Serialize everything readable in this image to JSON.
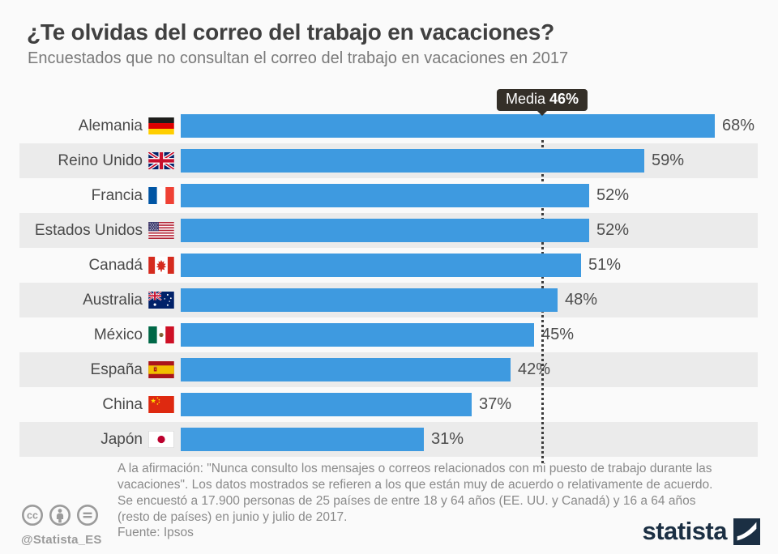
{
  "page": {
    "title": "¿Te olvidas del correo del trabajo en vacaciones?",
    "subtitle": "Encuestados que no consultan el correo del trabajo en vacaciones en 2017"
  },
  "chart_data": {
    "type": "bar",
    "orientation": "horizontal",
    "unit": "%",
    "title": "¿Te olvidas del correo del trabajo en vacaciones?",
    "subtitle": "Encuestados que no consultan el correo del trabajo en vacaciones en 2017",
    "categories": [
      "Alemania",
      "Reino Unido",
      "Francia",
      "Estados Unidos",
      "Canadá",
      "Australia",
      "México",
      "España",
      "China",
      "Japón"
    ],
    "values": [
      68,
      59,
      52,
      52,
      51,
      48,
      45,
      42,
      37,
      31
    ],
    "flags": [
      "germany",
      "uk",
      "france",
      "usa",
      "canada",
      "australia",
      "mexico",
      "spain",
      "china",
      "japan"
    ],
    "median": {
      "label": "Media",
      "value": 46,
      "display_value": "46%"
    },
    "xlim": [
      0,
      73.5
    ],
    "grid": false,
    "legend": false,
    "bar_color": "#3e9ae0",
    "stripe_color": "#ebebeb",
    "median_line_color": "#3c3c3c",
    "tooltip_bg": "#342f28"
  },
  "footer": {
    "note_lines": [
      "A la afirmación: \"Nunca consulto los mensajes o correos relacionados con mi puesto de trabajo durante las",
      "vacaciones\". Los datos mostrados se refieren a los que están muy de acuerdo o relativamente de acuerdo.",
      "Se encuestó a 17.900 personas de 25 países de entre 18 y 64 años (EE. UU. y Canadá) y 16 a 64 años",
      "(resto de países) en junio y julio de 2017."
    ],
    "source": "Fuente: Ipsos",
    "credit": "@Statista_ES",
    "cc_icons": [
      "cc",
      "attribution",
      "no-derivatives"
    ],
    "brand": "statista"
  }
}
